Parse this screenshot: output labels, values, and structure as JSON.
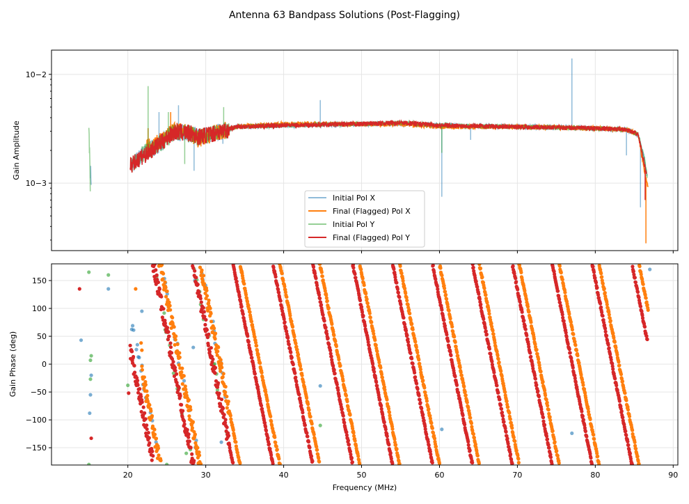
{
  "chart_data": [
    {
      "type": "line",
      "title": "Antenna 63 Bandpass Solutions (Post-Flagging)",
      "xlabel": "",
      "ylabel": "Gain Amplitude",
      "yscale": "log",
      "xlim": [
        10.2,
        90.6
      ],
      "ylim": [
        0.00024,
        0.0167
      ],
      "xticks": [
        20,
        30,
        40,
        50,
        60,
        70,
        80,
        90
      ],
      "yticks": [
        0.001,
        0.01
      ],
      "ytick_labels": [
        "10−3",
        "10−2"
      ],
      "grid": true,
      "legend": {
        "placement": "lower-center",
        "entries": [
          "Initial Pol X",
          "Final (Flagged) Pol X",
          "Initial Pol Y",
          "Final (Flagged) Pol Y"
        ]
      },
      "series": [
        {
          "name": "Initial Pol X",
          "color": "#1f77b4",
          "alpha": 0.5,
          "x": [
            15.2,
            15.3,
            20.4,
            22,
            24,
            26,
            28,
            29,
            31,
            34,
            40,
            50,
            55,
            60,
            70,
            80,
            84,
            85.5,
            86.3,
            86.7
          ],
          "y": [
            0.00135,
            0.00105,
            0.00145,
            0.0019,
            0.0023,
            0.003,
            0.0029,
            0.0027,
            0.0029,
            0.0033,
            0.0034,
            0.0035,
            0.0035,
            0.0034,
            0.0033,
            0.0032,
            0.0031,
            0.0028,
            0.0017,
            0.0011
          ],
          "spikes": [
            [
              77,
              0.014
            ],
            [
              44.7,
              0.0058
            ],
            [
              60.3,
              0.00075
            ],
            [
              85.8,
              0.0006
            ],
            [
              84,
              0.0018
            ],
            [
              64,
              0.0025
            ],
            [
              28.5,
              0.0013
            ],
            [
              24,
              0.0045
            ],
            [
              26.5,
              0.0052
            ],
            [
              32.2,
              0.0023
            ]
          ]
        },
        {
          "name": "Final (Flagged) Pol X",
          "color": "#ff7f0e",
          "alpha": 1,
          "x": [
            22.3,
            24,
            26,
            28,
            29,
            31,
            34,
            40,
            50,
            55,
            60,
            70,
            80,
            84,
            85.5,
            86.3,
            86.8
          ],
          "y": [
            0.0021,
            0.0024,
            0.0031,
            0.0029,
            0.0026,
            0.0029,
            0.0033,
            0.0035,
            0.0035,
            0.0035,
            0.0033,
            0.0033,
            0.0032,
            0.0031,
            0.0028,
            0.0013,
            0.0009
          ],
          "spikes": [
            [
              86.5,
              0.00028
            ],
            [
              22.6,
              0.0032
            ],
            [
              25.5,
              0.0045
            ]
          ]
        },
        {
          "name": "Initial Pol Y",
          "color": "#2ca02c",
          "alpha": 0.5,
          "x": [
            15.0,
            15.2,
            20.4,
            22,
            24,
            26,
            28,
            29,
            31,
            34,
            40,
            50,
            55,
            60,
            70,
            80,
            84,
            85.5,
            86.3,
            86.7
          ],
          "y": [
            0.0034,
            0.00088,
            0.00145,
            0.0019,
            0.0023,
            0.003,
            0.0029,
            0.0027,
            0.0029,
            0.0033,
            0.0034,
            0.0035,
            0.0036,
            0.0034,
            0.0033,
            0.0032,
            0.0031,
            0.0028,
            0.0017,
            0.0011
          ],
          "spikes": [
            [
              22.6,
              0.0078
            ],
            [
              15.0,
              0.0034
            ],
            [
              60.3,
              0.0019
            ],
            [
              32.3,
              0.005
            ],
            [
              25.2,
              0.0045
            ],
            [
              27.3,
              0.0015
            ]
          ]
        },
        {
          "name": "Final (Flagged) Pol Y",
          "color": "#d62728",
          "alpha": 1,
          "x": [
            20.3,
            22,
            24,
            26,
            28,
            29,
            31,
            34,
            40,
            50,
            55,
            60,
            70,
            80,
            84,
            85.5,
            86.3,
            86.6
          ],
          "y": [
            0.00145,
            0.0018,
            0.0023,
            0.003,
            0.0029,
            0.0027,
            0.0029,
            0.0033,
            0.0034,
            0.0035,
            0.0036,
            0.0034,
            0.0033,
            0.0032,
            0.0031,
            0.0028,
            0.0015,
            0.0012
          ],
          "spikes": [
            [
              86.4,
              0.0007
            ]
          ]
        }
      ]
    },
    {
      "type": "scatter",
      "xlabel": "Frequency (MHz)",
      "ylabel": "Gain Phase (deg)",
      "xlim": [
        10.2,
        90.6
      ],
      "ylim": [
        -181,
        180
      ],
      "xticks": [
        20,
        30,
        40,
        50,
        60,
        70,
        80,
        90
      ],
      "yticks": [
        -150,
        -100,
        -50,
        0,
        50,
        100,
        150
      ],
      "grid": true,
      "series": [
        {
          "name": "Initial Pol X",
          "color": "#1f77b4",
          "alpha": 0.6,
          "phase_model": {
            "slope_deg_per_MHz": -70.3,
            "ref_freq_MHz": 34.39,
            "ref_phase_deg": 180,
            "range_MHz": [
              20.5,
              33
            ]
          },
          "points": [
            [
              14.0,
              43
            ],
            [
              15.3,
              -20
            ],
            [
              15.2,
              -55
            ],
            [
              15.1,
              -88
            ],
            [
              17.5,
              135
            ],
            [
              21.8,
              95
            ],
            [
              28.6,
              150
            ],
            [
              28.4,
              30
            ],
            [
              32.0,
              -140
            ],
            [
              44.7,
              -39
            ],
            [
              60.3,
              -117
            ],
            [
              77.0,
              -124
            ],
            [
              87.0,
              170
            ]
          ]
        },
        {
          "name": "Final (Flagged) Pol X",
          "color": "#ff7f0e",
          "alpha": 1,
          "phase_model": {
            "slope_deg_per_MHz": -70.3,
            "ref_freq_MHz": 34.39,
            "ref_phase_deg": 180,
            "range_MHz": [
              21.8,
              86.8
            ]
          },
          "points": [
            [
              21.7,
              38
            ],
            [
              21.8,
              25
            ],
            [
              21.0,
              135
            ]
          ]
        },
        {
          "name": "Initial Pol Y",
          "color": "#2ca02c",
          "alpha": 0.6,
          "phase_model": {
            "slope_deg_per_MHz": -70.3,
            "ref_freq_MHz": 33.5,
            "ref_phase_deg": 180,
            "range_MHz": [
              22.5,
              33
            ]
          },
          "points": [
            [
              15.0,
              165
            ],
            [
              15.3,
              15
            ],
            [
              15.2,
              7
            ],
            [
              15.2,
              -27
            ],
            [
              15.0,
              -180
            ],
            [
              17.5,
              160
            ],
            [
              20.0,
              -38
            ],
            [
              44.7,
              -110
            ],
            [
              25.0,
              -180
            ],
            [
              27.5,
              -160
            ]
          ]
        },
        {
          "name": "Final (Flagged) Pol Y",
          "color": "#d62728",
          "alpha": 1,
          "phase_model": {
            "slope_deg_per_MHz": -70.3,
            "ref_freq_MHz": 33.5,
            "ref_phase_deg": 180,
            "range_MHz": [
              20.3,
              86.7
            ]
          },
          "points": [
            [
              13.8,
              135
            ],
            [
              15.3,
              -133
            ],
            [
              20.1,
              -52
            ]
          ]
        }
      ]
    }
  ]
}
